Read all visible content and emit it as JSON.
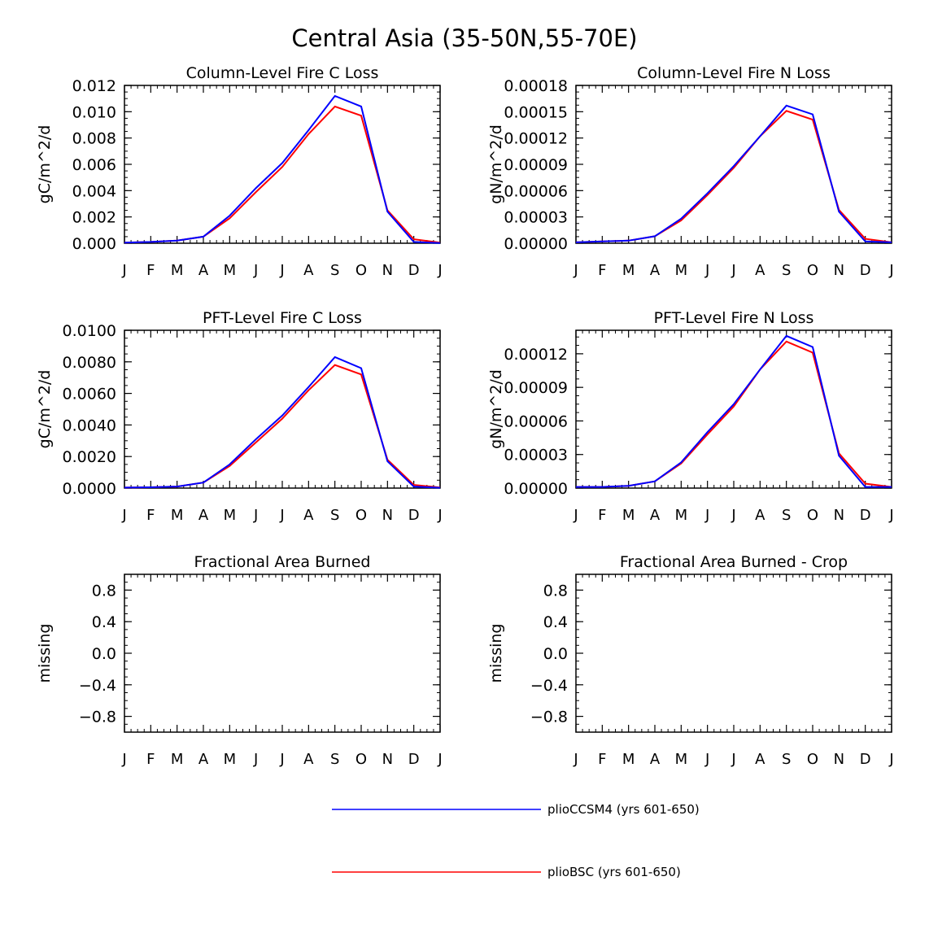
{
  "page_title": "Central Asia (35-50N,55-70E)",
  "legend": [
    {
      "label": "plioCCSM4 (yrs 601-650)",
      "color": "#0000ff"
    },
    {
      "label": "plioBSC (yrs 601-650)",
      "color": "#ff0000"
    }
  ],
  "chart_data": [
    {
      "type": "line",
      "title": "Column-Level Fire C Loss",
      "ylabel": "gC/m^2/d",
      "xlabel": "",
      "x": [
        "J",
        "F",
        "M",
        "A",
        "M",
        "J",
        "J",
        "A",
        "S",
        "O",
        "N",
        "D",
        "J"
      ],
      "ylim": [
        0,
        0.012
      ],
      "yticks": [
        "0.000",
        "0.002",
        "0.004",
        "0.006",
        "0.008",
        "0.010",
        "0.012"
      ],
      "series": [
        {
          "name": "plioCCSM4 (yrs 601-650)",
          "color": "#0000ff",
          "values": [
            5e-05,
            0.0001,
            0.0002,
            0.0005,
            0.0021,
            0.0042,
            0.0061,
            0.0086,
            0.0112,
            0.0104,
            0.0024,
            0.0001,
            2e-05
          ]
        },
        {
          "name": "plioBSC (yrs 601-650)",
          "color": "#ff0000",
          "values": [
            5e-05,
            0.0001,
            0.0002,
            0.0005,
            0.0019,
            0.0039,
            0.0058,
            0.0083,
            0.0104,
            0.0097,
            0.0025,
            0.0003,
            5e-05
          ]
        }
      ]
    },
    {
      "type": "line",
      "title": "Column-Level Fire N Loss",
      "ylabel": "gN/m^2/d",
      "xlabel": "",
      "x": [
        "J",
        "F",
        "M",
        "A",
        "M",
        "J",
        "J",
        "A",
        "S",
        "O",
        "N",
        "D",
        "J"
      ],
      "ylim": [
        0,
        0.00018
      ],
      "yticks": [
        "0.00000",
        "0.00003",
        "0.00006",
        "0.00009",
        "0.00012",
        "0.00015",
        "0.00018"
      ],
      "series": [
        {
          "name": "plioCCSM4 (yrs 601-650)",
          "color": "#0000ff",
          "values": [
            1e-06,
            2e-06,
            3e-06,
            8e-06,
            2.8e-05,
            5.7e-05,
            8.8e-05,
            0.000122,
            0.000157,
            0.000147,
            3.6e-05,
            2e-06,
            1e-06
          ]
        },
        {
          "name": "plioBSC (yrs 601-650)",
          "color": "#ff0000",
          "values": [
            1e-06,
            2e-06,
            3e-06,
            8e-06,
            2.6e-05,
            5.5e-05,
            8.6e-05,
            0.000122,
            0.000151,
            0.000141,
            3.8e-05,
            5e-06,
            1e-06
          ]
        }
      ]
    },
    {
      "type": "line",
      "title": "PFT-Level Fire C Loss",
      "ylabel": "gC/m^2/d",
      "xlabel": "",
      "x": [
        "J",
        "F",
        "M",
        "A",
        "M",
        "J",
        "J",
        "A",
        "S",
        "O",
        "N",
        "D",
        "J"
      ],
      "ylim": [
        0,
        0.01
      ],
      "yticks": [
        "0.0000",
        "0.0020",
        "0.0040",
        "0.0060",
        "0.0080",
        "0.0100"
      ],
      "series": [
        {
          "name": "plioCCSM4 (yrs 601-650)",
          "color": "#0000ff",
          "values": [
            3e-05,
            5e-05,
            0.0001,
            0.00035,
            0.0015,
            0.0031,
            0.0046,
            0.0064,
            0.0083,
            0.0076,
            0.0017,
            0.0001,
            2e-05
          ]
        },
        {
          "name": "plioBSC (yrs 601-650)",
          "color": "#ff0000",
          "values": [
            3e-05,
            5e-05,
            0.0001,
            0.00035,
            0.0014,
            0.0029,
            0.0044,
            0.0062,
            0.0078,
            0.0072,
            0.0018,
            0.0002,
            4e-05
          ]
        }
      ]
    },
    {
      "type": "line",
      "title": "PFT-Level Fire N Loss",
      "ylabel": "gN/m^2/d",
      "xlabel": "",
      "x": [
        "J",
        "F",
        "M",
        "A",
        "M",
        "J",
        "J",
        "A",
        "S",
        "O",
        "N",
        "D",
        "J"
      ],
      "ylim": [
        0,
        0.000141
      ],
      "yticks": [
        "0.00000",
        "0.00003",
        "0.00006",
        "0.00009",
        "0.00012"
      ],
      "series": [
        {
          "name": "plioCCSM4 (yrs 601-650)",
          "color": "#0000ff",
          "values": [
            1e-06,
            1e-06,
            2e-06,
            6e-06,
            2.3e-05,
            5e-05,
            7.5e-05,
            0.000106,
            0.000136,
            0.000126,
            2.9e-05,
            1e-06,
            1e-06
          ]
        },
        {
          "name": "plioBSC (yrs 601-650)",
          "color": "#ff0000",
          "values": [
            1e-06,
            1e-06,
            2e-06,
            6e-06,
            2.2e-05,
            4.8e-05,
            7.3e-05,
            0.000106,
            0.000131,
            0.000121,
            3.1e-05,
            4e-06,
            1e-06
          ]
        }
      ]
    },
    {
      "type": "line",
      "title": "Fractional Area Burned",
      "ylabel": "missing",
      "xlabel": "",
      "x": [
        "J",
        "F",
        "M",
        "A",
        "M",
        "J",
        "J",
        "A",
        "S",
        "O",
        "N",
        "D",
        "J"
      ],
      "ylim": [
        -1.0,
        1.0
      ],
      "yticks": [
        "-0.8",
        "-0.4",
        "0.0",
        "0.4",
        "0.8"
      ],
      "series": []
    },
    {
      "type": "line",
      "title": "Fractional Area Burned - Crop",
      "ylabel": "missing",
      "xlabel": "",
      "x": [
        "J",
        "F",
        "M",
        "A",
        "M",
        "J",
        "J",
        "A",
        "S",
        "O",
        "N",
        "D",
        "J"
      ],
      "ylim": [
        -1.0,
        1.0
      ],
      "yticks": [
        "-0.8",
        "-0.4",
        "0.0",
        "0.4",
        "0.8"
      ],
      "series": []
    }
  ]
}
